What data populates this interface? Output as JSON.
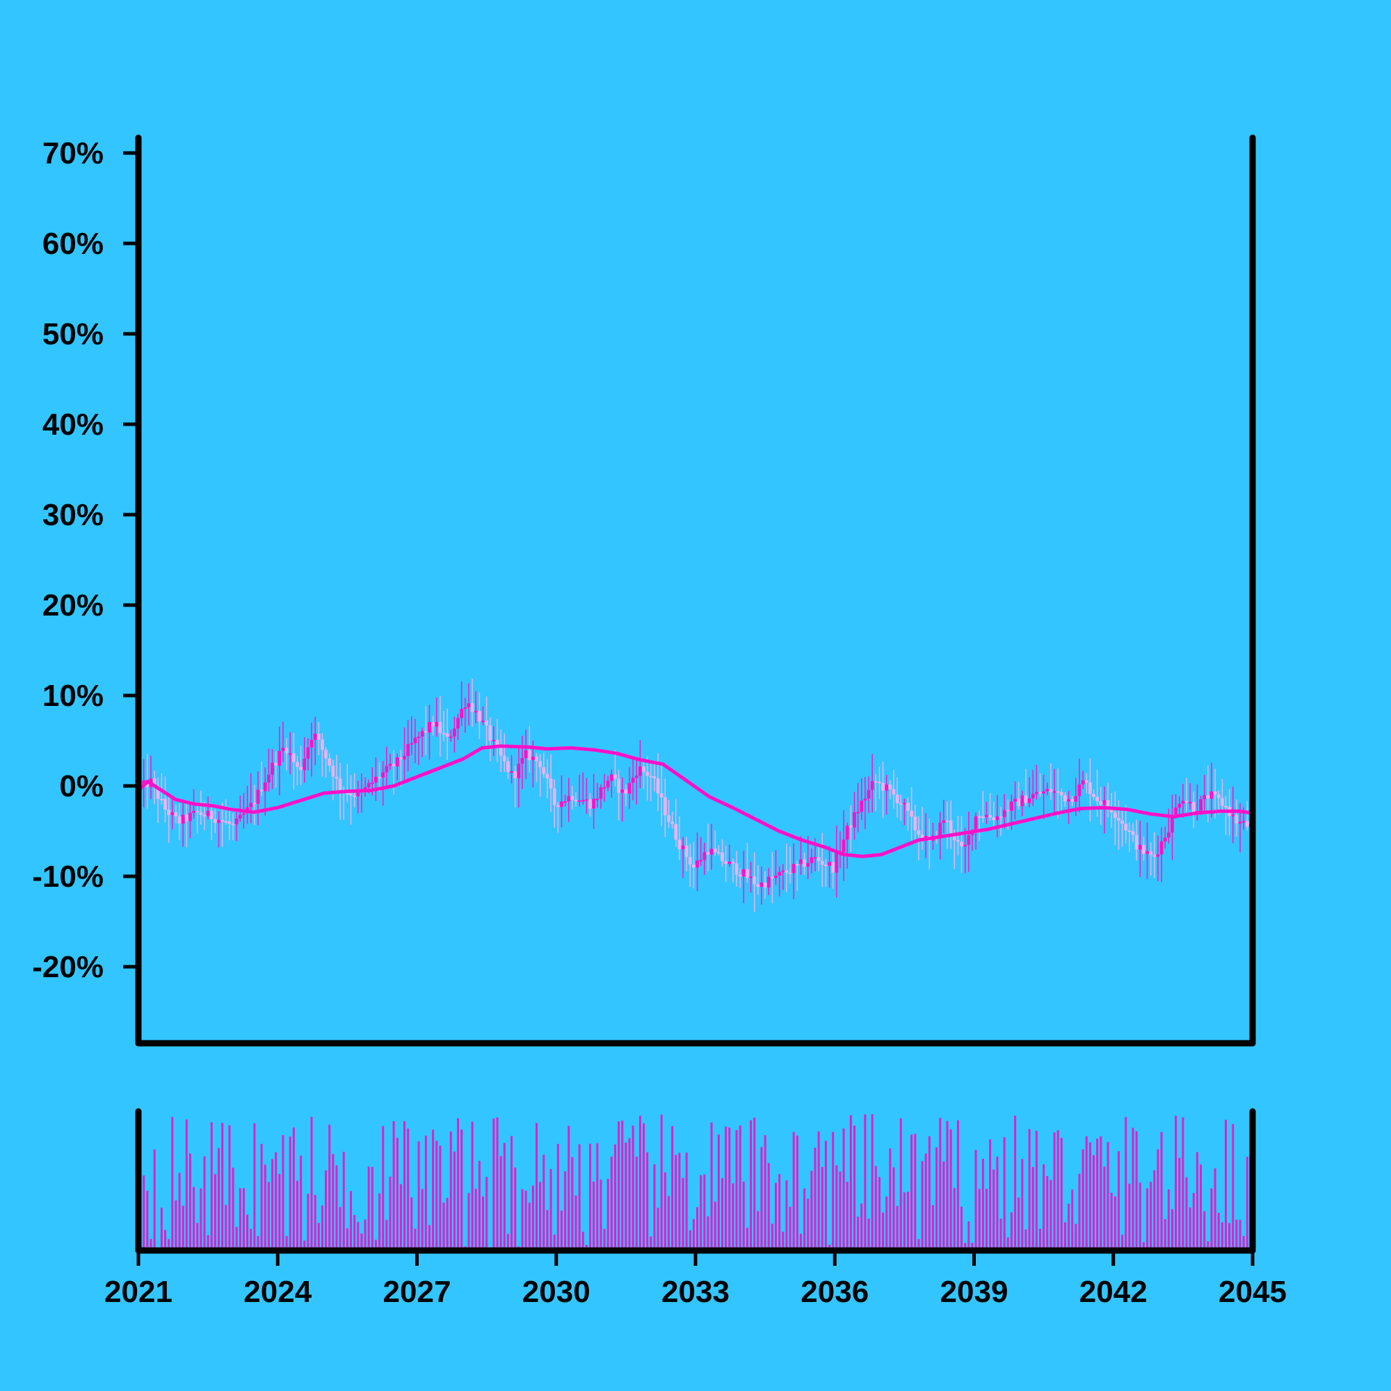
{
  "chart_data": {
    "type": "candlestick",
    "title": "",
    "xlabel": "",
    "ylabel": "",
    "x_ticks": [
      "2021",
      "2024",
      "2027",
      "2030",
      "2033",
      "2036",
      "2039",
      "2042",
      "2045"
    ],
    "x_range": [
      2021,
      2045
    ],
    "y_ticks": [
      "-20%",
      "-10%",
      "0%",
      "10%",
      "20%",
      "30%",
      "40%",
      "50%",
      "60%",
      "70%"
    ],
    "y_range": [
      -28,
      70
    ],
    "grid": false,
    "legend": "none",
    "colors": {
      "background": "#33c5ff",
      "axis": "#000000",
      "candle_up": "#ff10c8",
      "candle_down": "#e8b4f0",
      "moving_average": "#ff10c8",
      "volume": "#e020c8"
    },
    "price_path": [
      [
        2021.0,
        -0.5
      ],
      [
        2021.3,
        0.5
      ],
      [
        2021.6,
        -2.5
      ],
      [
        2021.9,
        -4.0
      ],
      [
        2022.3,
        -3.0
      ],
      [
        2022.7,
        -3.5
      ],
      [
        2023.1,
        -4.5
      ],
      [
        2023.5,
        -2.0
      ],
      [
        2023.9,
        2.0
      ],
      [
        2024.2,
        4.5
      ],
      [
        2024.5,
        1.5
      ],
      [
        2024.8,
        6.0
      ],
      [
        2025.1,
        3.0
      ],
      [
        2025.4,
        -0.5
      ],
      [
        2025.8,
        -1.0
      ],
      [
        2026.2,
        1.0
      ],
      [
        2026.6,
        2.5
      ],
      [
        2027.0,
        5.0
      ],
      [
        2027.4,
        7.0
      ],
      [
        2027.7,
        5.0
      ],
      [
        2028.1,
        9.5
      ],
      [
        2028.4,
        7.5
      ],
      [
        2028.8,
        3.5
      ],
      [
        2029.1,
        1.0
      ],
      [
        2029.4,
        3.5
      ],
      [
        2029.7,
        2.5
      ],
      [
        2030.0,
        -2.0
      ],
      [
        2030.4,
        -1.0
      ],
      [
        2030.8,
        -2.0
      ],
      [
        2031.2,
        1.0
      ],
      [
        2031.5,
        -1.0
      ],
      [
        2031.8,
        2.0
      ],
      [
        2032.1,
        1.0
      ],
      [
        2032.4,
        -3.0
      ],
      [
        2032.7,
        -6.5
      ],
      [
        2033.0,
        -9.0
      ],
      [
        2033.3,
        -7.0
      ],
      [
        2033.7,
        -8.5
      ],
      [
        2034.0,
        -9.5
      ],
      [
        2034.4,
        -11.0
      ],
      [
        2034.8,
        -10.0
      ],
      [
        2035.2,
        -9.0
      ],
      [
        2035.6,
        -8.0
      ],
      [
        2036.0,
        -9.0
      ],
      [
        2036.3,
        -5.0
      ],
      [
        2036.6,
        -2.0
      ],
      [
        2036.9,
        0.5
      ],
      [
        2037.2,
        -0.5
      ],
      [
        2037.5,
        -2.0
      ],
      [
        2037.8,
        -5.0
      ],
      [
        2038.1,
        -6.5
      ],
      [
        2038.4,
        -3.5
      ],
      [
        2038.8,
        -7.5
      ],
      [
        2039.1,
        -3.0
      ],
      [
        2039.5,
        -3.5
      ],
      [
        2039.9,
        -2.0
      ],
      [
        2040.3,
        -1.0
      ],
      [
        2040.7,
        -0.5
      ],
      [
        2041.1,
        -1.5
      ],
      [
        2041.4,
        0.5
      ],
      [
        2041.7,
        -1.5
      ],
      [
        2042.0,
        -2.5
      ],
      [
        2042.3,
        -4.5
      ],
      [
        2042.6,
        -7.0
      ],
      [
        2042.9,
        -8.0
      ],
      [
        2043.2,
        -5.0
      ],
      [
        2043.5,
        -1.0
      ],
      [
        2043.8,
        -2.5
      ],
      [
        2044.1,
        -1.0
      ],
      [
        2044.4,
        -2.0
      ],
      [
        2044.7,
        -4.0
      ],
      [
        2045.0,
        -4.5
      ]
    ],
    "moving_average": [
      [
        2021.0,
        -0.5
      ],
      [
        2021.2,
        0.5
      ],
      [
        2021.5,
        -0.5
      ],
      [
        2021.8,
        -1.5
      ],
      [
        2022.2,
        -2.0
      ],
      [
        2022.6,
        -2.2
      ],
      [
        2023.0,
        -2.6
      ],
      [
        2023.5,
        -2.9
      ],
      [
        2024.0,
        -2.4
      ],
      [
        2024.5,
        -1.6
      ],
      [
        2025.0,
        -0.8
      ],
      [
        2025.5,
        -0.6
      ],
      [
        2026.0,
        -0.5
      ],
      [
        2026.5,
        0.0
      ],
      [
        2027.0,
        1.0
      ],
      [
        2027.5,
        2.0
      ],
      [
        2028.0,
        3.0
      ],
      [
        2028.4,
        4.2
      ],
      [
        2028.8,
        4.4
      ],
      [
        2029.4,
        4.3
      ],
      [
        2029.8,
        4.1
      ],
      [
        2030.3,
        4.2
      ],
      [
        2030.8,
        4.0
      ],
      [
        2031.3,
        3.6
      ],
      [
        2031.8,
        2.9
      ],
      [
        2032.3,
        2.4
      ],
      [
        2032.8,
        0.6
      ],
      [
        2033.3,
        -1.2
      ],
      [
        2033.8,
        -2.4
      ],
      [
        2034.3,
        -3.7
      ],
      [
        2034.8,
        -5.0
      ],
      [
        2035.3,
        -6.0
      ],
      [
        2035.8,
        -6.8
      ],
      [
        2036.2,
        -7.6
      ],
      [
        2036.6,
        -7.8
      ],
      [
        2037.0,
        -7.6
      ],
      [
        2037.4,
        -6.8
      ],
      [
        2037.8,
        -6.0
      ],
      [
        2038.3,
        -5.6
      ],
      [
        2038.8,
        -5.2
      ],
      [
        2039.3,
        -4.8
      ],
      [
        2039.8,
        -4.2
      ],
      [
        2040.3,
        -3.6
      ],
      [
        2040.8,
        -3.0
      ],
      [
        2041.3,
        -2.5
      ],
      [
        2041.8,
        -2.4
      ],
      [
        2042.3,
        -2.6
      ],
      [
        2042.8,
        -3.1
      ],
      [
        2043.3,
        -3.4
      ],
      [
        2043.8,
        -3.0
      ],
      [
        2044.3,
        -2.8
      ],
      [
        2044.7,
        -2.8
      ],
      [
        2045.0,
        -3.0
      ]
    ],
    "volume_range": [
      0,
      100
    ]
  }
}
